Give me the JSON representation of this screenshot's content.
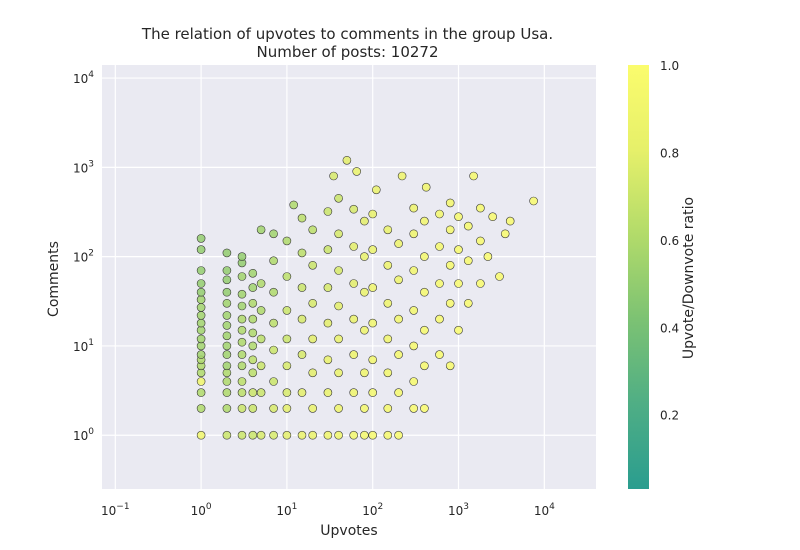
{
  "chart_data": {
    "type": "scatter",
    "title": "The relation of upvotes to comments in the group Usa.",
    "subtitle": "Number of posts: 10272",
    "xlabel": "Upvotes",
    "ylabel": "Comments",
    "x_scale": "log",
    "y_scale": "log",
    "xlim": [
      0.07,
      40000
    ],
    "ylim": [
      0.25,
      14000
    ],
    "x_ticks": [
      0.1,
      1,
      10,
      100,
      1000,
      10000
    ],
    "y_ticks": [
      1,
      10,
      100,
      1000,
      10000
    ],
    "grid": true,
    "colorbar": {
      "label": "Upvote/Downvote ratio",
      "range": [
        0.03,
        1.0
      ],
      "ticks": [
        0.2,
        0.4,
        0.6,
        0.8,
        1.0
      ],
      "tick_labels": [
        "0.2",
        "0.4",
        "0.6",
        "0.8",
        "1.0"
      ],
      "colormap": [
        "#2a9d8f",
        "#4fae85",
        "#7cc273",
        "#b2db6a",
        "#e6f06a",
        "#fbfc6d"
      ]
    },
    "colors": {
      "plot_background": "#eaeaf2",
      "grid": "#ffffff",
      "marker_edge": "#3a3a3a"
    },
    "points_count_note": "Number of posts: 10272",
    "points": [
      {
        "x": 1,
        "y": 1,
        "c": 0.9
      },
      {
        "x": 1,
        "y": 2,
        "c": 0.6
      },
      {
        "x": 1,
        "y": 3,
        "c": 0.6
      },
      {
        "x": 1,
        "y": 4,
        "c": 0.9
      },
      {
        "x": 1,
        "y": 5,
        "c": 0.6
      },
      {
        "x": 1,
        "y": 6,
        "c": 0.6
      },
      {
        "x": 1,
        "y": 7,
        "c": 0.6
      },
      {
        "x": 1,
        "y": 8,
        "c": 0.55
      },
      {
        "x": 1,
        "y": 10,
        "c": 0.55
      },
      {
        "x": 1,
        "y": 12,
        "c": 0.55
      },
      {
        "x": 1,
        "y": 15,
        "c": 0.55
      },
      {
        "x": 1,
        "y": 18,
        "c": 0.55
      },
      {
        "x": 1,
        "y": 22,
        "c": 0.55
      },
      {
        "x": 1,
        "y": 27,
        "c": 0.55
      },
      {
        "x": 1,
        "y": 33,
        "c": 0.55
      },
      {
        "x": 1,
        "y": 40,
        "c": 0.5
      },
      {
        "x": 1,
        "y": 50,
        "c": 0.5
      },
      {
        "x": 1,
        "y": 70,
        "c": 0.5
      },
      {
        "x": 1,
        "y": 120,
        "c": 0.5
      },
      {
        "x": 1,
        "y": 160,
        "c": 0.5
      },
      {
        "x": 2,
        "y": 1,
        "c": 0.7
      },
      {
        "x": 2,
        "y": 2,
        "c": 0.6
      },
      {
        "x": 2,
        "y": 3,
        "c": 0.6
      },
      {
        "x": 2,
        "y": 4,
        "c": 0.6
      },
      {
        "x": 2,
        "y": 5,
        "c": 0.6
      },
      {
        "x": 2,
        "y": 6,
        "c": 0.55
      },
      {
        "x": 2,
        "y": 8,
        "c": 0.55
      },
      {
        "x": 2,
        "y": 10,
        "c": 0.55
      },
      {
        "x": 2,
        "y": 13,
        "c": 0.55
      },
      {
        "x": 2,
        "y": 17,
        "c": 0.55
      },
      {
        "x": 2,
        "y": 22,
        "c": 0.55
      },
      {
        "x": 2,
        "y": 30,
        "c": 0.55
      },
      {
        "x": 2,
        "y": 40,
        "c": 0.5
      },
      {
        "x": 2,
        "y": 55,
        "c": 0.5
      },
      {
        "x": 2,
        "y": 70,
        "c": 0.5
      },
      {
        "x": 2,
        "y": 110,
        "c": 0.5
      },
      {
        "x": 3,
        "y": 1,
        "c": 0.7
      },
      {
        "x": 3,
        "y": 2,
        "c": 0.7
      },
      {
        "x": 3,
        "y": 3,
        "c": 0.65
      },
      {
        "x": 3,
        "y": 4,
        "c": 0.65
      },
      {
        "x": 3,
        "y": 6,
        "c": 0.6
      },
      {
        "x": 3,
        "y": 8,
        "c": 0.6
      },
      {
        "x": 3,
        "y": 11,
        "c": 0.6
      },
      {
        "x": 3,
        "y": 15,
        "c": 0.6
      },
      {
        "x": 3,
        "y": 20,
        "c": 0.6
      },
      {
        "x": 3,
        "y": 28,
        "c": 0.55
      },
      {
        "x": 3,
        "y": 38,
        "c": 0.55
      },
      {
        "x": 3,
        "y": 60,
        "c": 0.55
      },
      {
        "x": 3,
        "y": 85,
        "c": 0.5
      },
      {
        "x": 3,
        "y": 100,
        "c": 0.5
      },
      {
        "x": 4,
        "y": 1,
        "c": 0.7
      },
      {
        "x": 4,
        "y": 2,
        "c": 0.7
      },
      {
        "x": 4,
        "y": 3,
        "c": 0.7
      },
      {
        "x": 4,
        "y": 5,
        "c": 0.65
      },
      {
        "x": 4,
        "y": 7,
        "c": 0.65
      },
      {
        "x": 4,
        "y": 10,
        "c": 0.6
      },
      {
        "x": 4,
        "y": 14,
        "c": 0.6
      },
      {
        "x": 4,
        "y": 20,
        "c": 0.6
      },
      {
        "x": 4,
        "y": 30,
        "c": 0.6
      },
      {
        "x": 4,
        "y": 45,
        "c": 0.55
      },
      {
        "x": 4,
        "y": 65,
        "c": 0.55
      },
      {
        "x": 5,
        "y": 1,
        "c": 0.75
      },
      {
        "x": 5,
        "y": 3,
        "c": 0.7
      },
      {
        "x": 5,
        "y": 6,
        "c": 0.7
      },
      {
        "x": 5,
        "y": 12,
        "c": 0.65
      },
      {
        "x": 5,
        "y": 25,
        "c": 0.6
      },
      {
        "x": 5,
        "y": 50,
        "c": 0.6
      },
      {
        "x": 5,
        "y": 200,
        "c": 0.55
      },
      {
        "x": 7,
        "y": 1,
        "c": 0.75
      },
      {
        "x": 7,
        "y": 2,
        "c": 0.75
      },
      {
        "x": 7,
        "y": 4,
        "c": 0.7
      },
      {
        "x": 7,
        "y": 9,
        "c": 0.7
      },
      {
        "x": 7,
        "y": 18,
        "c": 0.65
      },
      {
        "x": 7,
        "y": 40,
        "c": 0.6
      },
      {
        "x": 7,
        "y": 90,
        "c": 0.6
      },
      {
        "x": 7,
        "y": 180,
        "c": 0.55
      },
      {
        "x": 10,
        "y": 1,
        "c": 0.8
      },
      {
        "x": 10,
        "y": 2,
        "c": 0.8
      },
      {
        "x": 10,
        "y": 3,
        "c": 0.75
      },
      {
        "x": 10,
        "y": 6,
        "c": 0.75
      },
      {
        "x": 10,
        "y": 12,
        "c": 0.7
      },
      {
        "x": 10,
        "y": 25,
        "c": 0.7
      },
      {
        "x": 10,
        "y": 60,
        "c": 0.65
      },
      {
        "x": 10,
        "y": 150,
        "c": 0.6
      },
      {
        "x": 12,
        "y": 380,
        "c": 0.6
      },
      {
        "x": 15,
        "y": 1,
        "c": 0.85
      },
      {
        "x": 15,
        "y": 3,
        "c": 0.8
      },
      {
        "x": 15,
        "y": 8,
        "c": 0.75
      },
      {
        "x": 15,
        "y": 20,
        "c": 0.75
      },
      {
        "x": 15,
        "y": 45,
        "c": 0.7
      },
      {
        "x": 15,
        "y": 110,
        "c": 0.65
      },
      {
        "x": 15,
        "y": 270,
        "c": 0.65
      },
      {
        "x": 20,
        "y": 1,
        "c": 0.85
      },
      {
        "x": 20,
        "y": 2,
        "c": 0.85
      },
      {
        "x": 20,
        "y": 5,
        "c": 0.8
      },
      {
        "x": 20,
        "y": 12,
        "c": 0.8
      },
      {
        "x": 20,
        "y": 30,
        "c": 0.75
      },
      {
        "x": 20,
        "y": 80,
        "c": 0.7
      },
      {
        "x": 20,
        "y": 200,
        "c": 0.65
      },
      {
        "x": 30,
        "y": 1,
        "c": 0.9
      },
      {
        "x": 30,
        "y": 3,
        "c": 0.85
      },
      {
        "x": 30,
        "y": 7,
        "c": 0.85
      },
      {
        "x": 30,
        "y": 18,
        "c": 0.8
      },
      {
        "x": 30,
        "y": 45,
        "c": 0.75
      },
      {
        "x": 30,
        "y": 120,
        "c": 0.7
      },
      {
        "x": 30,
        "y": 320,
        "c": 0.7
      },
      {
        "x": 35,
        "y": 800,
        "c": 0.75
      },
      {
        "x": 40,
        "y": 1,
        "c": 0.9
      },
      {
        "x": 40,
        "y": 2,
        "c": 0.9
      },
      {
        "x": 40,
        "y": 5,
        "c": 0.85
      },
      {
        "x": 40,
        "y": 12,
        "c": 0.85
      },
      {
        "x": 40,
        "y": 28,
        "c": 0.8
      },
      {
        "x": 40,
        "y": 70,
        "c": 0.75
      },
      {
        "x": 40,
        "y": 180,
        "c": 0.75
      },
      {
        "x": 40,
        "y": 450,
        "c": 0.7
      },
      {
        "x": 50,
        "y": 1200,
        "c": 0.8
      },
      {
        "x": 60,
        "y": 1,
        "c": 0.92
      },
      {
        "x": 60,
        "y": 3,
        "c": 0.9
      },
      {
        "x": 60,
        "y": 8,
        "c": 0.88
      },
      {
        "x": 60,
        "y": 20,
        "c": 0.85
      },
      {
        "x": 60,
        "y": 50,
        "c": 0.8
      },
      {
        "x": 60,
        "y": 130,
        "c": 0.8
      },
      {
        "x": 60,
        "y": 340,
        "c": 0.75
      },
      {
        "x": 65,
        "y": 900,
        "c": 0.85
      },
      {
        "x": 80,
        "y": 1,
        "c": 0.93
      },
      {
        "x": 80,
        "y": 2,
        "c": 0.93
      },
      {
        "x": 80,
        "y": 5,
        "c": 0.9
      },
      {
        "x": 80,
        "y": 15,
        "c": 0.88
      },
      {
        "x": 80,
        "y": 40,
        "c": 0.85
      },
      {
        "x": 80,
        "y": 100,
        "c": 0.82
      },
      {
        "x": 80,
        "y": 250,
        "c": 0.8
      },
      {
        "x": 100,
        "y": 1,
        "c": 0.95
      },
      {
        "x": 100,
        "y": 3,
        "c": 0.93
      },
      {
        "x": 100,
        "y": 7,
        "c": 0.92
      },
      {
        "x": 100,
        "y": 18,
        "c": 0.9
      },
      {
        "x": 100,
        "y": 45,
        "c": 0.88
      },
      {
        "x": 100,
        "y": 120,
        "c": 0.85
      },
      {
        "x": 100,
        "y": 300,
        "c": 0.82
      },
      {
        "x": 110,
        "y": 560,
        "c": 0.85
      },
      {
        "x": 150,
        "y": 1,
        "c": 0.95
      },
      {
        "x": 150,
        "y": 2,
        "c": 0.95
      },
      {
        "x": 150,
        "y": 5,
        "c": 0.93
      },
      {
        "x": 150,
        "y": 12,
        "c": 0.92
      },
      {
        "x": 150,
        "y": 30,
        "c": 0.9
      },
      {
        "x": 150,
        "y": 80,
        "c": 0.88
      },
      {
        "x": 150,
        "y": 200,
        "c": 0.85
      },
      {
        "x": 200,
        "y": 1,
        "c": 0.97
      },
      {
        "x": 200,
        "y": 3,
        "c": 0.95
      },
      {
        "x": 200,
        "y": 8,
        "c": 0.95
      },
      {
        "x": 200,
        "y": 20,
        "c": 0.93
      },
      {
        "x": 200,
        "y": 55,
        "c": 0.9
      },
      {
        "x": 200,
        "y": 140,
        "c": 0.88
      },
      {
        "x": 220,
        "y": 800,
        "c": 0.9
      },
      {
        "x": 300,
        "y": 2,
        "c": 0.97
      },
      {
        "x": 300,
        "y": 4,
        "c": 0.96
      },
      {
        "x": 300,
        "y": 10,
        "c": 0.95
      },
      {
        "x": 300,
        "y": 25,
        "c": 0.93
      },
      {
        "x": 300,
        "y": 70,
        "c": 0.92
      },
      {
        "x": 300,
        "y": 180,
        "c": 0.9
      },
      {
        "x": 300,
        "y": 350,
        "c": 0.88
      },
      {
        "x": 400,
        "y": 2,
        "c": 0.98
      },
      {
        "x": 400,
        "y": 6,
        "c": 0.97
      },
      {
        "x": 400,
        "y": 15,
        "c": 0.96
      },
      {
        "x": 400,
        "y": 40,
        "c": 0.95
      },
      {
        "x": 400,
        "y": 100,
        "c": 0.93
      },
      {
        "x": 400,
        "y": 250,
        "c": 0.92
      },
      {
        "x": 420,
        "y": 600,
        "c": 0.92
      },
      {
        "x": 600,
        "y": 8,
        "c": 0.98
      },
      {
        "x": 600,
        "y": 20,
        "c": 0.97
      },
      {
        "x": 600,
        "y": 50,
        "c": 0.96
      },
      {
        "x": 600,
        "y": 130,
        "c": 0.95
      },
      {
        "x": 600,
        "y": 300,
        "c": 0.93
      },
      {
        "x": 800,
        "y": 6,
        "c": 0.98
      },
      {
        "x": 800,
        "y": 30,
        "c": 0.97
      },
      {
        "x": 800,
        "y": 80,
        "c": 0.96
      },
      {
        "x": 800,
        "y": 200,
        "c": 0.95
      },
      {
        "x": 800,
        "y": 400,
        "c": 0.94
      },
      {
        "x": 1000,
        "y": 15,
        "c": 0.98
      },
      {
        "x": 1000,
        "y": 50,
        "c": 0.97
      },
      {
        "x": 1000,
        "y": 120,
        "c": 0.96
      },
      {
        "x": 1000,
        "y": 280,
        "c": 0.95
      },
      {
        "x": 1300,
        "y": 30,
        "c": 0.98
      },
      {
        "x": 1300,
        "y": 90,
        "c": 0.97
      },
      {
        "x": 1300,
        "y": 220,
        "c": 0.96
      },
      {
        "x": 1500,
        "y": 800,
        "c": 0.95
      },
      {
        "x": 1800,
        "y": 50,
        "c": 0.98
      },
      {
        "x": 1800,
        "y": 150,
        "c": 0.97
      },
      {
        "x": 1800,
        "y": 350,
        "c": 0.96
      },
      {
        "x": 2200,
        "y": 100,
        "c": 0.98
      },
      {
        "x": 2500,
        "y": 280,
        "c": 0.97
      },
      {
        "x": 3000,
        "y": 60,
        "c": 0.98
      },
      {
        "x": 3500,
        "y": 180,
        "c": 0.98
      },
      {
        "x": 4000,
        "y": 250,
        "c": 0.98
      },
      {
        "x": 7500,
        "y": 420,
        "c": 0.97
      }
    ]
  }
}
